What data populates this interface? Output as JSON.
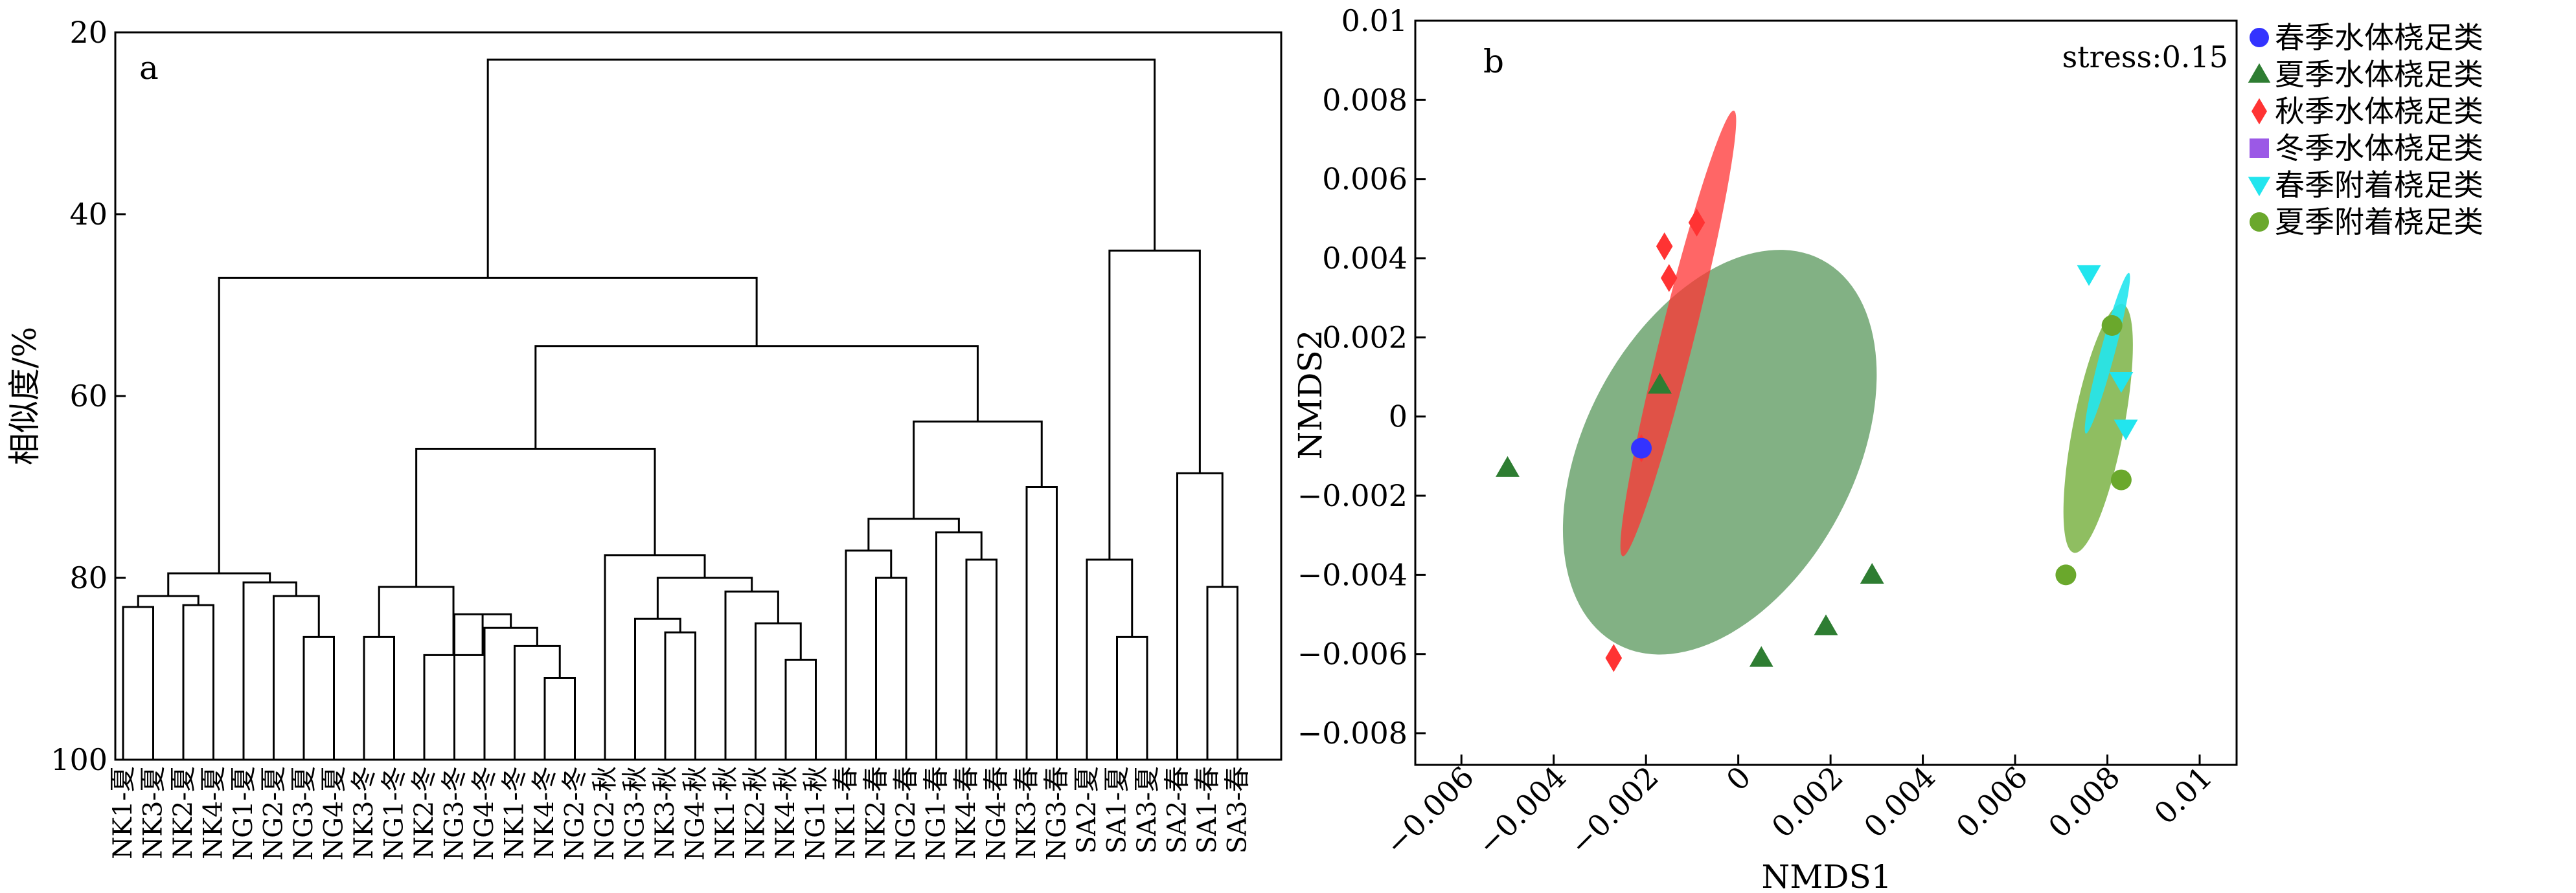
{
  "chart_data": [
    {
      "type": "dendrogram",
      "panel_label": "a",
      "ylabel": "相似度/%",
      "ylim": [
        20,
        100
      ],
      "y_ticks": [
        20,
        40,
        60,
        80,
        100
      ],
      "leaves": [
        "NK1-夏",
        "NK3-夏",
        "NK2-夏",
        "NK4-夏",
        "NG1-夏",
        "NG2-夏",
        "NG3-夏",
        "NG4-夏",
        "NK3-冬",
        "NG1-冬",
        "NK2-冬",
        "NG3-冬",
        "NG4-冬",
        "NK1-冬",
        "NK4-冬",
        "NG2-冬",
        "NG2-秋",
        "NG3-秋",
        "NK3-秋",
        "NG4-秋",
        "NK1-秋",
        "NK2-秋",
        "NK4-秋",
        "NG1-秋",
        "NK1-春",
        "NK2-春",
        "NG2-春",
        "NG1-春",
        "NK4-春",
        "NG4-春",
        "NK3-春",
        "NG3-春",
        "SA2-夏",
        "SA1-夏",
        "SA3-夏",
        "SA2-春",
        "SA1-春",
        "SA3-春"
      ],
      "merges": [
        {
          "a": 0,
          "b": 1,
          "sim": 83.2
        },
        {
          "a": 2,
          "b": 3,
          "sim": 83.0
        },
        {
          "a": 38,
          "b": 39,
          "sim": 82.0
        },
        {
          "a": 6,
          "b": 7,
          "sim": 86.5
        },
        {
          "a": 5,
          "b": 41,
          "sim": 82.0
        },
        {
          "a": 4,
          "b": 42,
          "sim": 80.5
        },
        {
          "a": 40,
          "b": 43,
          "sim": 79.5
        },
        {
          "a": 14,
          "b": 15,
          "sim": 91.0
        },
        {
          "a": 13,
          "b": 45,
          "sim": 87.5
        },
        {
          "a": 12,
          "b": 46,
          "sim": 85.5
        },
        {
          "a": 11,
          "b": 47,
          "sim": 84.0
        },
        {
          "a": 10,
          "b": 48,
          "sim": 88.5
        },
        {
          "a": 8,
          "b": 9,
          "sim": 86.5
        },
        {
          "a": 50,
          "b": 49,
          "sim": 81.0
        },
        {
          "a": 18,
          "b": 19,
          "sim": 86.0
        },
        {
          "a": 17,
          "b": 52,
          "sim": 84.5
        },
        {
          "a": 22,
          "b": 23,
          "sim": 89.0
        },
        {
          "a": 21,
          "b": 54,
          "sim": 85.0
        },
        {
          "a": 20,
          "b": 55,
          "sim": 81.5
        },
        {
          "a": 53,
          "b": 56,
          "sim": 80.0
        },
        {
          "a": 16,
          "b": 57,
          "sim": 77.5
        },
        {
          "a": 51,
          "b": 58,
          "sim": 65.8
        },
        {
          "a": 25,
          "b": 26,
          "sim": 80.0
        },
        {
          "a": 24,
          "b": 60,
          "sim": 77.0
        },
        {
          "a": 28,
          "b": 29,
          "sim": 78.0
        },
        {
          "a": 27,
          "b": 62,
          "sim": 75.0
        },
        {
          "a": 61,
          "b": 63,
          "sim": 73.5
        },
        {
          "a": 30,
          "b": 31,
          "sim": 70.0
        },
        {
          "a": 64,
          "b": 65,
          "sim": 62.8
        },
        {
          "a": 59,
          "b": 66,
          "sim": 54.5
        },
        {
          "a": 44,
          "b": 67,
          "sim": 47.0
        },
        {
          "a": 33,
          "b": 34,
          "sim": 86.5
        },
        {
          "a": 32,
          "b": 69,
          "sim": 78.0
        },
        {
          "a": 36,
          "b": 37,
          "sim": 81.0
        },
        {
          "a": 35,
          "b": 71,
          "sim": 68.5
        },
        {
          "a": 70,
          "b": 72,
          "sim": 44.0
        },
        {
          "a": 68,
          "b": 73,
          "sim": 23.0
        }
      ]
    },
    {
      "type": "scatter",
      "panel_label": "b",
      "annotation": "stress:0.15",
      "xlabel": "NMDS1",
      "ylabel": "NMDS2",
      "xlim": [
        -0.007,
        0.0108
      ],
      "ylim": [
        -0.0088,
        0.01
      ],
      "x_ticks": [
        -0.006,
        -0.004,
        -0.002,
        0,
        0.002,
        0.004,
        0.006,
        0.008,
        0.01
      ],
      "x_tick_labels": [
        "−0.006",
        "−0.004",
        "−0.002",
        "0",
        "0.002",
        "0.004",
        "0.006",
        "0.008",
        "0.01"
      ],
      "y_ticks": [
        -0.008,
        -0.006,
        -0.004,
        -0.002,
        0,
        0.002,
        0.004,
        0.006,
        0.008,
        0.01
      ],
      "y_tick_labels": [
        "−0.008",
        "−0.006",
        "−0.004",
        "−0.002",
        "0",
        "0.002",
        "0.004",
        "0.006",
        "0.008",
        "0.01"
      ],
      "legend_position": "outside-right",
      "series": [
        {
          "name": "春季水体桡足类",
          "marker": "circle",
          "color": "#3333ff",
          "points": [
            [
              -0.0021,
              -0.0008
            ]
          ]
        },
        {
          "name": "夏季水体桡足类",
          "marker": "triangle-up",
          "color": "#2e7d32",
          "points": [
            [
              -0.005,
              -0.0013
            ],
            [
              -0.0017,
              0.0008
            ],
            [
              0.0005,
              -0.0061
            ],
            [
              0.0019,
              -0.0053
            ],
            [
              0.0029,
              -0.004
            ]
          ]
        },
        {
          "name": "秋季水体桡足类",
          "marker": "diamond",
          "color": "#ff3333",
          "points": [
            [
              -0.0016,
              0.0043
            ],
            [
              -0.0009,
              0.0049
            ],
            [
              -0.0015,
              0.0035
            ],
            [
              -0.0027,
              -0.0061
            ],
            [
              -0.0021,
              -0.0008
            ]
          ]
        },
        {
          "name": "冬季水体桡足类",
          "marker": "square",
          "color": "#9b59e6",
          "points": []
        },
        {
          "name": "春季附着桡足类",
          "marker": "triangle-down",
          "color": "#22e5ee",
          "points": [
            [
              0.0076,
              0.0036
            ],
            [
              0.0083,
              0.0009
            ],
            [
              0.0084,
              -0.0003
            ]
          ]
        },
        {
          "name": "夏季附着桡足类",
          "marker": "circle",
          "color": "#6aa82c",
          "points": [
            [
              0.0081,
              0.0023
            ],
            [
              0.0083,
              -0.0016
            ],
            [
              0.0071,
              -0.004
            ]
          ]
        }
      ],
      "ellipses": [
        {
          "series": "夏季水体桡足类",
          "color": "#2e7d32",
          "center": [
            -0.0004,
            -0.0009
          ],
          "rx": 0.0055,
          "ry": 0.0034,
          "angle_deg": -62,
          "opacity": 0.6
        },
        {
          "series": "秋季水体桡足类",
          "color": "#ff3333",
          "center": [
            -0.0013,
            0.0021
          ],
          "rx": 0.0058,
          "ry": 0.00042,
          "angle_deg": -76,
          "opacity": 0.75
        },
        {
          "series": "夏季附着桡足类",
          "color": "#6aa82c",
          "center": [
            0.0078,
            -0.0003
          ],
          "rx": 0.0032,
          "ry": 0.00064,
          "angle_deg": -79,
          "opacity": 0.75
        },
        {
          "series": "春季附着桡足类",
          "color": "#22e5ee",
          "center": [
            0.008,
            0.0016
          ],
          "rx": 0.0021,
          "ry": 0.00018,
          "angle_deg": -75,
          "opacity": 0.9
        }
      ]
    }
  ]
}
